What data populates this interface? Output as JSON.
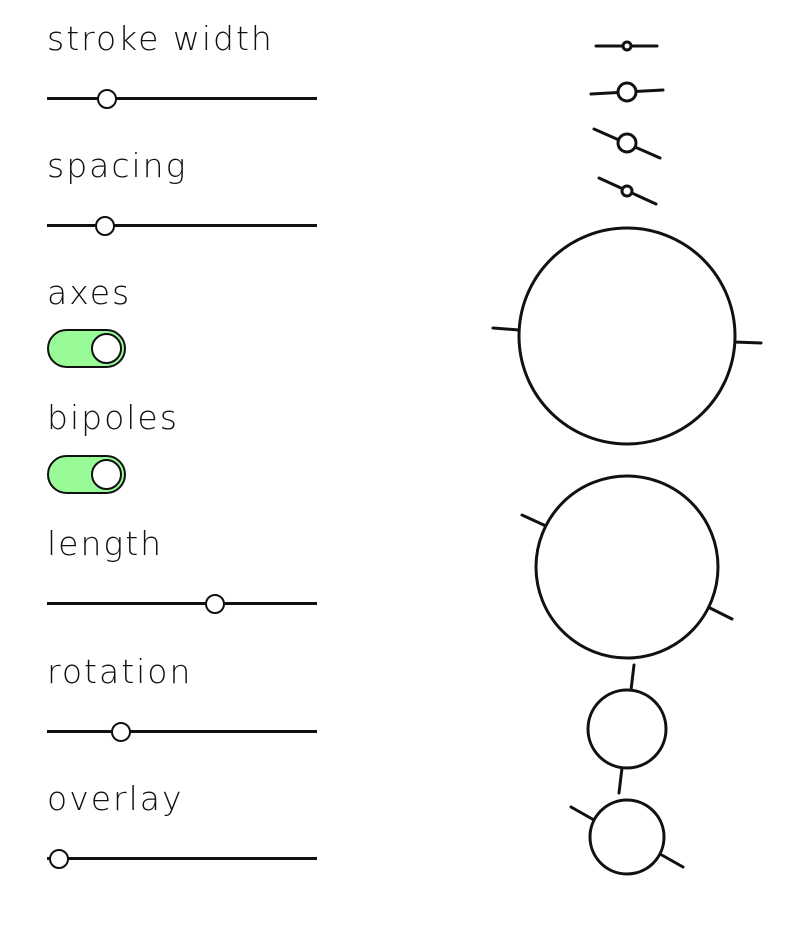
{
  "controls": {
    "stroke_width": {
      "label": "stroke width",
      "value": 0.22
    },
    "spacing": {
      "label": "spacing",
      "value": 0.21
    },
    "axes": {
      "label": "axes",
      "on": true
    },
    "bipoles": {
      "label": "bipoles",
      "on": true
    },
    "length": {
      "label": "length",
      "value": 0.62
    },
    "rotation": {
      "label": "rotation",
      "value": 0.27
    },
    "overlay": {
      "label": "overlay",
      "value": 0.04
    }
  },
  "colors": {
    "toggle_on": "#98fb98",
    "stroke": "#111111",
    "background": "#ffffff"
  }
}
